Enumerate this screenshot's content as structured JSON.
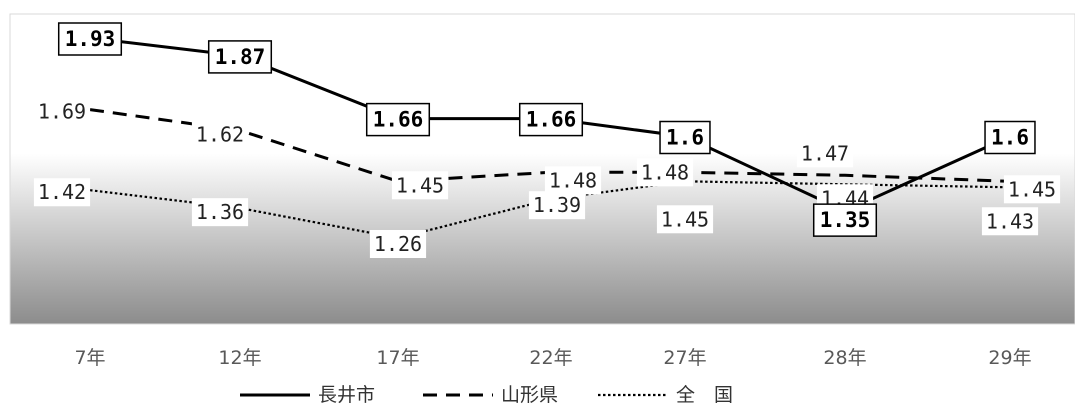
{
  "chart_data": {
    "type": "line",
    "categories": [
      "7年",
      "12年",
      "17年",
      "22年",
      "27年",
      "28年",
      "29年"
    ],
    "series": [
      {
        "name": "長井市",
        "style": "solid",
        "values": [
          1.93,
          1.87,
          1.66,
          1.66,
          1.6,
          1.35,
          1.6
        ],
        "labels": [
          "1.93",
          "1.87",
          "1.66",
          "1.66",
          "1.6",
          "1.35",
          "1.6"
        ]
      },
      {
        "name": "山形県",
        "style": "dashed",
        "values": [
          1.69,
          1.62,
          1.45,
          1.48,
          1.48,
          1.47,
          1.45
        ],
        "labels": [
          "1.69",
          "1.62",
          "1.45",
          "1.48",
          "1.48",
          "1.47",
          "1.45"
        ]
      },
      {
        "name": "全　国",
        "style": "dotted",
        "values": [
          1.42,
          1.36,
          1.26,
          1.39,
          1.45,
          1.44,
          1.43
        ],
        "labels": [
          "1.42",
          "1.36",
          "1.26",
          "1.39",
          "1.45",
          "1.44",
          "1.43"
        ]
      }
    ],
    "legend_position": "bottom",
    "grid": false,
    "colors": {
      "line": "#000000",
      "plot_gradient_top": "#ffffff",
      "plot_gradient_bottom": "#8c8c8c"
    }
  }
}
